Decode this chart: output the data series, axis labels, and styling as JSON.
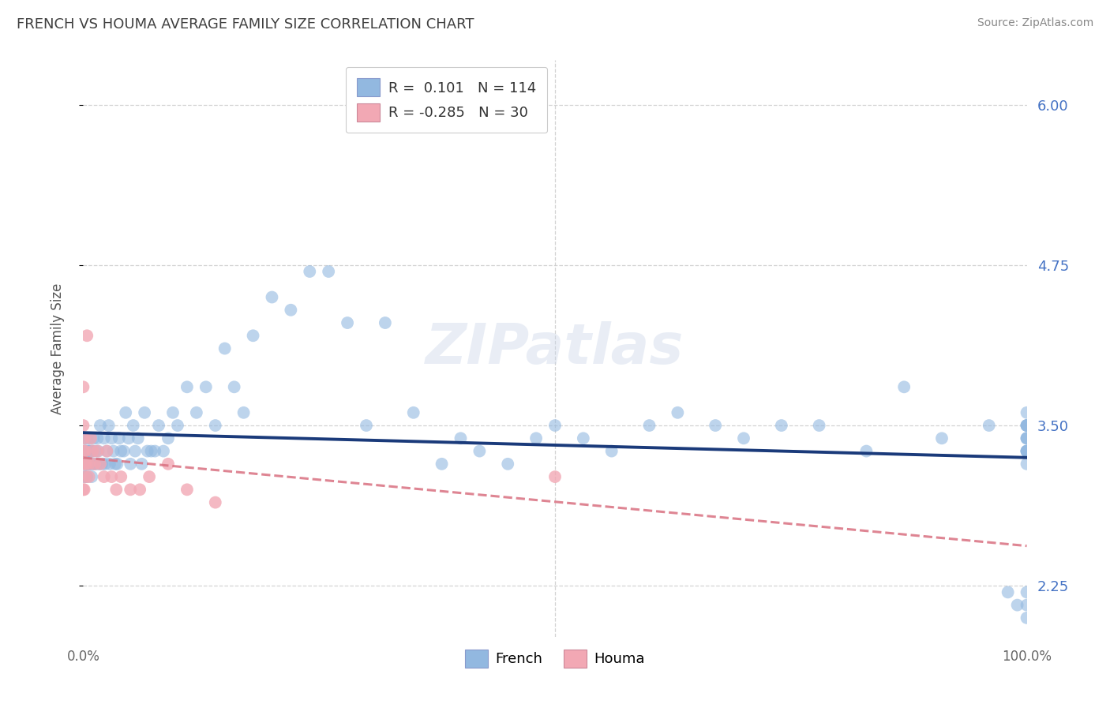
{
  "title": "FRENCH VS HOUMA AVERAGE FAMILY SIZE CORRELATION CHART",
  "source_text": "Source: ZipAtlas.com",
  "ylabel": "Average Family Size",
  "xlim": [
    0.0,
    1.0
  ],
  "ylim": [
    1.85,
    6.35
  ],
  "ytick_vals": [
    2.25,
    3.5,
    4.75,
    6.0
  ],
  "french_color": "#92B8E0",
  "houma_color": "#F2A8B4",
  "french_line_color": "#1A3A7A",
  "houma_line_color": "#D97080",
  "french_R": "0.101",
  "french_N": "114",
  "houma_R": "-0.285",
  "houma_N": "30",
  "right_tick_color": "#4472c4",
  "title_color": "#404040",
  "watermark": "ZIPatlas",
  "grid_color": "#cccccc",
  "bg_color": "#ffffff",
  "french_x": [
    0.0,
    0.001,
    0.001,
    0.001,
    0.002,
    0.002,
    0.002,
    0.002,
    0.003,
    0.003,
    0.004,
    0.004,
    0.005,
    0.005,
    0.005,
    0.006,
    0.006,
    0.007,
    0.007,
    0.008,
    0.008,
    0.009,
    0.009,
    0.01,
    0.01,
    0.011,
    0.012,
    0.013,
    0.014,
    0.015,
    0.016,
    0.017,
    0.018,
    0.02,
    0.022,
    0.023,
    0.025,
    0.027,
    0.028,
    0.03,
    0.032,
    0.034,
    0.036,
    0.038,
    0.04,
    0.043,
    0.045,
    0.048,
    0.05,
    0.053,
    0.055,
    0.058,
    0.062,
    0.065,
    0.068,
    0.072,
    0.076,
    0.08,
    0.085,
    0.09,
    0.095,
    0.1,
    0.11,
    0.12,
    0.13,
    0.14,
    0.15,
    0.16,
    0.17,
    0.18,
    0.2,
    0.22,
    0.24,
    0.26,
    0.28,
    0.3,
    0.32,
    0.35,
    0.38,
    0.4,
    0.42,
    0.45,
    0.48,
    0.5,
    0.53,
    0.56,
    0.6,
    0.63,
    0.67,
    0.7,
    0.74,
    0.78,
    0.83,
    0.87,
    0.91,
    0.96,
    0.98,
    0.99,
    1.0,
    1.0,
    1.0,
    1.0,
    1.0,
    1.0,
    1.0,
    1.0,
    1.0,
    1.0,
    1.0,
    1.0,
    1.0,
    1.0,
    1.0,
    1.0
  ],
  "french_y": [
    3.2,
    3.1,
    3.3,
    3.4,
    3.2,
    3.3,
    3.1,
    3.3,
    3.2,
    3.3,
    3.1,
    3.4,
    3.2,
    3.3,
    3.2,
    3.3,
    3.3,
    3.2,
    3.4,
    3.3,
    3.2,
    3.1,
    3.3,
    3.2,
    3.3,
    3.4,
    3.2,
    3.3,
    3.2,
    3.4,
    3.3,
    3.2,
    3.5,
    3.2,
    3.4,
    3.2,
    3.3,
    3.5,
    3.2,
    3.4,
    3.3,
    3.2,
    3.2,
    3.4,
    3.3,
    3.3,
    3.6,
    3.4,
    3.2,
    3.5,
    3.3,
    3.4,
    3.2,
    3.6,
    3.3,
    3.3,
    3.3,
    3.5,
    3.3,
    3.4,
    3.6,
    3.5,
    3.8,
    3.6,
    3.8,
    3.5,
    4.1,
    3.8,
    3.6,
    4.2,
    4.5,
    4.4,
    4.7,
    4.7,
    4.3,
    3.5,
    4.3,
    3.6,
    3.2,
    3.4,
    3.3,
    3.2,
    3.4,
    3.5,
    3.4,
    3.3,
    3.5,
    3.6,
    3.5,
    3.4,
    3.5,
    3.5,
    3.3,
    3.8,
    3.4,
    3.5,
    2.2,
    2.1,
    2.1,
    2.2,
    2.0,
    3.3,
    3.5,
    3.3,
    3.4,
    3.5,
    3.6,
    3.4,
    3.3,
    3.5,
    3.2,
    3.3,
    3.4,
    3.5
  ],
  "houma_x": [
    0.0,
    0.0,
    0.0,
    0.0,
    0.001,
    0.001,
    0.001,
    0.002,
    0.002,
    0.003,
    0.004,
    0.006,
    0.006,
    0.008,
    0.01,
    0.012,
    0.015,
    0.018,
    0.022,
    0.025,
    0.03,
    0.035,
    0.04,
    0.05,
    0.06,
    0.07,
    0.09,
    0.11,
    0.14,
    0.5
  ],
  "houma_y": [
    3.5,
    3.8,
    3.0,
    3.3,
    3.2,
    3.4,
    3.0,
    3.3,
    3.1,
    3.2,
    4.2,
    3.2,
    3.1,
    3.4,
    3.3,
    3.2,
    3.3,
    3.2,
    3.1,
    3.3,
    3.1,
    3.0,
    3.1,
    3.0,
    3.0,
    3.1,
    3.2,
    3.0,
    2.9,
    3.1
  ]
}
